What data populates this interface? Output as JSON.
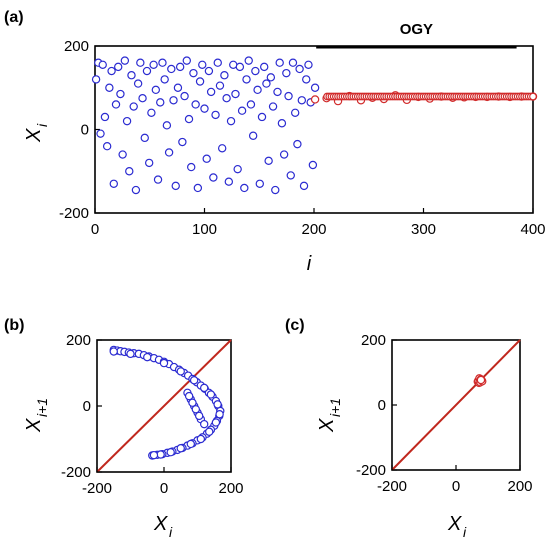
{
  "chart_data": [
    {
      "panel": "(a)",
      "type": "scatter",
      "xlim": [
        0,
        400
      ],
      "ylim": [
        -200,
        200
      ],
      "xticks": [
        "0",
        "100",
        "200",
        "300",
        "400"
      ],
      "yticks": [
        "-200",
        "0",
        "200"
      ],
      "xlabel": "i",
      "ylabel": {
        "main": "X",
        "sub": "i"
      },
      "annotation": {
        "text": "OGY",
        "x_from": 202,
        "x_to": 385
      },
      "series": [
        {
          "marker_color": "#2b2bd1",
          "x_range": [
            1,
            201
          ],
          "sample_values": [
            120,
            160,
            -10,
            155,
            30,
            -40,
            100,
            140,
            -130,
            60,
            150,
            85,
            -60,
            165,
            20,
            -100,
            130,
            55,
            -145,
            110,
            160,
            75,
            -20,
            140,
            -80,
            40,
            155,
            95,
            -120,
            65,
            160,
            120,
            10,
            -55,
            145,
            70,
            -135,
            100,
            150,
            -30,
            80,
            165,
            25,
            -90,
            135,
            60,
            -140,
            115,
            155,
            50,
            -70,
            140,
            90,
            -115,
            35,
            160,
            105,
            -45,
            130,
            75,
            -125,
            20,
            155,
            85,
            -95,
            150,
            45,
            -140,
            120,
            165,
            60,
            -15,
            140,
            95,
            -130,
            30,
            150,
            110,
            -75,
            125,
            55,
            -145,
            90,
            160,
            15,
            -60,
            135,
            80,
            -110,
            160,
            40,
            -35,
            145,
            70,
            -135,
            120,
            155,
            65,
            -85,
            100
          ]
        },
        {
          "marker_color": "#d12b2b",
          "x_range": [
            201,
            400
          ],
          "values": [
            72,
            75,
            68,
            80,
            70,
            76,
            73,
            82,
            71,
            78,
            74,
            79,
            76,
            77,
            78,
            78,
            79,
            78,
            79,
            79
          ]
        }
      ]
    },
    {
      "panel": "(b)",
      "type": "scatter",
      "xlim": [
        -200,
        200
      ],
      "ylim": [
        -200,
        200
      ],
      "xticks": [
        "-200",
        "0",
        "200"
      ],
      "yticks": [
        "-200",
        "0",
        "200"
      ],
      "xlabel": {
        "main": "X",
        "sub": "i"
      },
      "ylabel": {
        "main": "X",
        "sub": "i+1"
      },
      "diagonal_color": "#c0281e",
      "points": [
        [
          -150,
          170
        ],
        [
          -140,
          168
        ],
        [
          -130,
          166
        ],
        [
          -118,
          164
        ],
        [
          -105,
          162
        ],
        [
          -90,
          160
        ],
        [
          -75,
          158
        ],
        [
          -60,
          154
        ],
        [
          -45,
          150
        ],
        [
          -30,
          145
        ],
        [
          -15,
          140
        ],
        [
          0,
          134
        ],
        [
          15,
          127
        ],
        [
          30,
          118
        ],
        [
          45,
          110
        ],
        [
          60,
          100
        ],
        [
          72,
          92
        ],
        [
          85,
          82
        ],
        [
          98,
          72
        ],
        [
          110,
          62
        ],
        [
          122,
          52
        ],
        [
          134,
          40
        ],
        [
          145,
          28
        ],
        [
          155,
          15
        ],
        [
          162,
          0
        ],
        [
          168,
          -15
        ],
        [
          165,
          -30
        ],
        [
          158,
          -45
        ],
        [
          150,
          -60
        ],
        [
          140,
          -72
        ],
        [
          128,
          -84
        ],
        [
          115,
          -95
        ],
        [
          100,
          -104
        ],
        [
          85,
          -113
        ],
        [
          70,
          -120
        ],
        [
          55,
          -127
        ],
        [
          40,
          -133
        ],
        [
          25,
          -138
        ],
        [
          10,
          -142
        ],
        [
          -5,
          -146
        ],
        [
          -20,
          -148
        ],
        [
          -35,
          -150
        ],
        [
          -150,
          165
        ],
        [
          -100,
          158
        ],
        [
          -50,
          148
        ],
        [
          0,
          130
        ],
        [
          50,
          105
        ],
        [
          90,
          78
        ],
        [
          120,
          55
        ],
        [
          140,
          35
        ],
        [
          160,
          5
        ],
        [
          166,
          -25
        ],
        [
          155,
          -50
        ],
        [
          135,
          -78
        ],
        [
          110,
          -100
        ],
        [
          80,
          -115
        ],
        [
          50,
          -128
        ],
        [
          20,
          -140
        ],
        [
          -10,
          -147
        ],
        [
          -30,
          -149
        ],
        [
          70,
          40
        ],
        [
          80,
          20
        ],
        [
          90,
          0
        ],
        [
          100,
          -20
        ],
        [
          110,
          -40
        ],
        [
          75,
          30
        ],
        [
          85,
          10
        ],
        [
          95,
          -10
        ],
        [
          105,
          -30
        ],
        [
          120,
          -55
        ]
      ]
    },
    {
      "panel": "(c)",
      "type": "scatter",
      "xlim": [
        -200,
        200
      ],
      "ylim": [
        -200,
        200
      ],
      "xticks": [
        "-200",
        "0",
        "200"
      ],
      "yticks": [
        "-200",
        "0",
        "200"
      ],
      "xlabel": {
        "main": "X",
        "sub": "i"
      },
      "ylabel": {
        "main": "X",
        "sub": "i+1"
      },
      "diagonal_color": "#c0281e",
      "points": [
        [
          68,
          72
        ],
        [
          72,
          68
        ],
        [
          75,
          80
        ],
        [
          80,
          75
        ],
        [
          70,
          76
        ],
        [
          76,
          70
        ],
        [
          73,
          82
        ],
        [
          82,
          73
        ],
        [
          78,
          79
        ],
        [
          79,
          78
        ],
        [
          77,
          78
        ],
        [
          78,
          77
        ]
      ]
    }
  ],
  "colors": {
    "blue": "#2b2bd1",
    "red": "#d12b2b",
    "axis": "#000000",
    "diag": "#c0281e"
  }
}
